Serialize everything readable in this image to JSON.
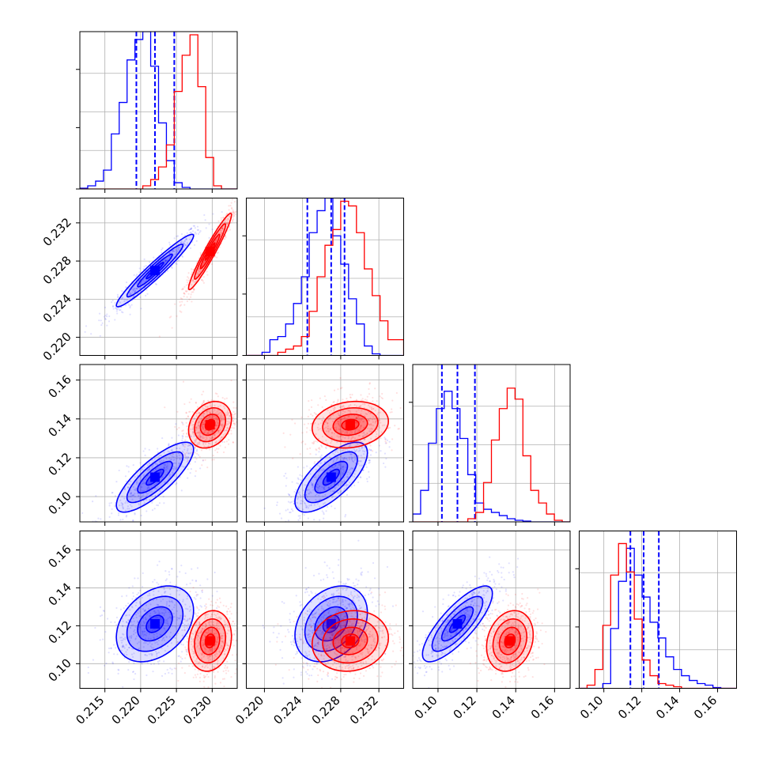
{
  "chart_data": {
    "type": "corner",
    "parameters": [
      "",
      "",
      "",
      ""
    ],
    "ranges": [
      [
        0.2115,
        0.2335
      ],
      [
        0.2181,
        0.2346
      ],
      [
        0.087,
        0.168
      ],
      [
        0.087,
        0.17
      ]
    ],
    "ticks": [
      {
        "values": [
          0.215,
          0.22,
          0.225,
          0.23
        ],
        "labels": [
          "0.215",
          "0.220",
          "0.225",
          "0.230"
        ]
      },
      {
        "values": [
          0.22,
          0.224,
          0.228,
          0.232
        ],
        "labels": [
          "0.220",
          "0.224",
          "0.228",
          "0.232"
        ]
      },
      {
        "values": [
          0.1,
          0.12,
          0.14,
          0.16
        ],
        "labels": [
          "0.10",
          "0.12",
          "0.14",
          "0.16"
        ]
      },
      {
        "values": [
          0.1,
          0.12,
          0.14,
          0.16
        ],
        "labels": [
          "0.10",
          "0.12",
          "0.14",
          "0.16"
        ]
      }
    ],
    "grid": true,
    "series": [
      {
        "color": "#0000ff",
        "mean": [
          0.222,
          0.227,
          0.11,
          0.121
        ],
        "std": [
          0.0027,
          0.0019,
          0.009,
          0.01
        ],
        "quantiles": [
          [
            0.2194,
            0.222,
            0.2247
          ],
          [
            0.2245,
            0.227,
            0.2284
          ],
          [
            0.102,
            0.11,
            0.119
          ],
          [
            0.114,
            0.121,
            0.129
          ]
        ],
        "histograms": [
          [
            0.005,
            0.02,
            0.05,
            0.12,
            0.35,
            0.55,
            0.82,
            0.95,
            1.0,
            0.78,
            0.42,
            0.18,
            0.04,
            0.01,
            0,
            0,
            0,
            0,
            0,
            0
          ],
          [
            0,
            0,
            0.02,
            0.1,
            0.12,
            0.2,
            0.33,
            0.5,
            0.78,
            0.92,
            1.0,
            0.76,
            0.58,
            0.36,
            0.2,
            0.06,
            0.01,
            0,
            0,
            0
          ],
          [
            0.05,
            0.2,
            0.5,
            0.72,
            0.83,
            0.72,
            0.53,
            0.3,
            0.12,
            0.08,
            0.06,
            0.04,
            0.02,
            0.01,
            0.005,
            0,
            0,
            0,
            0,
            0
          ],
          [
            0,
            0,
            0,
            0.03,
            0.38,
            0.68,
            0.89,
            0.72,
            0.58,
            0.42,
            0.32,
            0.2,
            0.12,
            0.08,
            0.05,
            0.03,
            0.02,
            0.005,
            0,
            0
          ]
        ]
      },
      {
        "color": "#ff0000",
        "mean": [
          0.2297,
          0.229,
          0.137,
          0.112
        ],
        "std": [
          0.0015,
          0.002,
          0.006,
          0.008
        ],
        "quantiles": [],
        "histograms": [
          [
            0,
            0,
            0,
            0,
            0,
            0,
            0,
            0,
            0.02,
            0.06,
            0.14,
            0.28,
            0.62,
            0.85,
            0.98,
            0.65,
            0.2,
            0.02,
            0,
            0
          ],
          [
            0,
            0,
            0,
            0,
            0.02,
            0.04,
            0.06,
            0.12,
            0.28,
            0.5,
            0.7,
            0.8,
            0.98,
            0.95,
            0.78,
            0.55,
            0.38,
            0.22,
            0.1,
            0.1
          ],
          [
            0,
            0,
            0,
            0,
            0,
            0,
            0,
            0.02,
            0.06,
            0.25,
            0.52,
            0.72,
            0.85,
            0.78,
            0.42,
            0.2,
            0.12,
            0.05,
            0.01,
            0
          ],
          [
            0,
            0.02,
            0.12,
            0.4,
            0.72,
            0.92,
            0.74,
            0.44,
            0.18,
            0.08,
            0.03,
            0.02,
            0.01,
            0,
            0,
            0,
            0,
            0,
            0,
            0
          ]
        ]
      }
    ],
    "correlations": {
      "blue": {
        "1-0": 0.96,
        "2-0": 0.8,
        "2-1": 0.7,
        "3-0": 0.35,
        "3-1": 0.3,
        "3-2": 0.8
      },
      "red": {
        "1-0": 0.96,
        "2-0": 0.25,
        "2-1": 0.15,
        "3-0": 0.15,
        "3-1": 0.1,
        "3-2": 0.2
      }
    }
  }
}
